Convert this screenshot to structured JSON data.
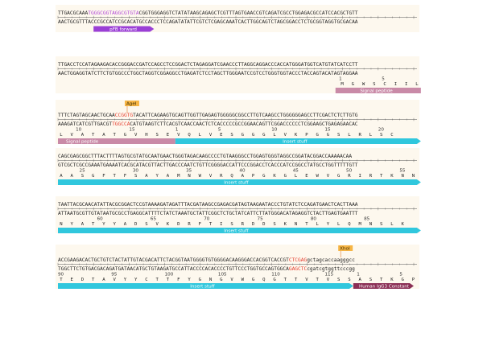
{
  "colors": {
    "background": "#ffffff",
    "band": "#fdf8ee",
    "purple_feature": "#9a3fd6",
    "signal_peptide": "#c98aa7",
    "insert": "#30c7dd",
    "igg_constant": "#8b2f55",
    "enzyme_label_bg": "#f6b545",
    "site_red": "#e53b2c",
    "site_purple": "#b046d6"
  },
  "blocks": [
    {
      "top_segments": [
        {
          "text": "TTGACGCAAA",
          "style": "normal"
        },
        {
          "text": "TGGGCGGTAGGCGTGTA",
          "style": "purple"
        },
        {
          "text": "CGGTGGGAGGTCTATATAAGCAGAGCTCGTTTAGTGAACCGTCAGATCGCCTGGAGACGCCATCCACGCTGTT",
          "style": "normal"
        }
      ],
      "bottom_segments": [
        {
          "text": "AACTGCGTTTACCCGCCATCCGCACATGCCACCCTCCAGATATATTCGTCTCGAGCAAATCACTTGGCAGTCTAGCGGACCTCTGCGGTAGGTGCGACAA",
          "style": "normal"
        }
      ],
      "numbers": [],
      "aa": [],
      "features": [
        {
          "label": "pFB forward",
          "start": 10,
          "end": 27,
          "color_key": "purple_feature",
          "direction": "right",
          "show_label": true
        }
      ],
      "enzymes": []
    },
    {
      "top_segments": [
        {
          "text": "TTGACCTCCATAGAAGACACCGGGACCGATCCAGCCTCCGGACTCTAGAGGATCGAACCCTTAGGCAGGACCCACCATGGGATGGTCATGTATCATCCTT",
          "style": "normal"
        }
      ],
      "bottom_segments": [
        {
          "text": "AACTGGAGGTATCTTCTGTGGCCCTGGCTAGGTCGGAGGCCTGAGATCTCCTAGCTTGGGAATCCGTCCTGGGTGGTACCCTACCAGTACATAGTAGGAA",
          "style": "normal"
        }
      ],
      "numbers": [
        {
          "n": "1",
          "pos": 79
        },
        {
          "n": "5",
          "pos": 91
        }
      ],
      "aa": [
        {
          "a": "M",
          "pos": 79
        },
        {
          "a": "G",
          "pos": 82
        },
        {
          "a": "W",
          "pos": 85
        },
        {
          "a": "S",
          "pos": 88
        },
        {
          "a": "C",
          "pos": 91
        },
        {
          "a": "I",
          "pos": 94
        },
        {
          "a": "I",
          "pos": 97
        },
        {
          "a": "L",
          "pos": 100
        }
      ],
      "features": [
        {
          "label": "Signal peptide",
          "start": 78,
          "end": 102,
          "color_key": "signal_peptide",
          "direction": "none",
          "show_label": true
        }
      ],
      "enzymes": []
    },
    {
      "top_segments": [
        {
          "text": "TTTCTAGTAGCAACTGCAA",
          "style": "normal"
        },
        {
          "text": "CCGGTG",
          "style": "red"
        },
        {
          "text": "TACATTCAGAAGTGCAGTTGGTTGAGAGTGGGGGCGGCCTTGTCAAGCCTGGGGGGAGCCTTCGACTCTCTTGTG",
          "style": "normal"
        }
      ],
      "bottom_segments": [
        {
          "text": "AAAGATCATCGTTGACGT",
          "style": "normal"
        },
        {
          "text": "TGGCCA",
          "style": "red"
        },
        {
          "text": "CATGTAAGTCTTCACGTCAACCAACTCTCACCCCCGCCGGAACAGTTCGGACCCCCCTCGGAAGCTGAGAGAACAC",
          "style": "normal"
        }
      ],
      "numbers": [
        {
          "n": "10",
          "pos": 5
        },
        {
          "n": "15",
          "pos": 20
        },
        {
          "n": "1",
          "pos": 33
        },
        {
          "n": "5",
          "pos": 45
        },
        {
          "n": "10",
          "pos": 60
        },
        {
          "n": "15",
          "pos": 75
        },
        {
          "n": "20",
          "pos": 90
        }
      ],
      "aa": [
        {
          "a": "L",
          "pos": 0
        },
        {
          "a": "V",
          "pos": 3
        },
        {
          "a": "A",
          "pos": 6
        },
        {
          "a": "T",
          "pos": 9
        },
        {
          "a": "A",
          "pos": 12
        },
        {
          "a": "T",
          "pos": 15
        },
        {
          "a": "G",
          "pos": 18
        },
        {
          "a": "V",
          "pos": 21
        },
        {
          "a": "H",
          "pos": 24
        },
        {
          "a": "S",
          "pos": 27
        },
        {
          "a": "E",
          "pos": 30
        },
        {
          "a": "V",
          "pos": 33
        },
        {
          "a": "Q",
          "pos": 36
        },
        {
          "a": "L",
          "pos": 39
        },
        {
          "a": "V",
          "pos": 42
        },
        {
          "a": "E",
          "pos": 45
        },
        {
          "a": "S",
          "pos": 48
        },
        {
          "a": "G",
          "pos": 51
        },
        {
          "a": "G",
          "pos": 54
        },
        {
          "a": "G",
          "pos": 57
        },
        {
          "a": "L",
          "pos": 60
        },
        {
          "a": "V",
          "pos": 63
        },
        {
          "a": "K",
          "pos": 66
        },
        {
          "a": "P",
          "pos": 69
        },
        {
          "a": "G",
          "pos": 72
        },
        {
          "a": "G",
          "pos": 75
        },
        {
          "a": "S",
          "pos": 78
        },
        {
          "a": "L",
          "pos": 81
        },
        {
          "a": "R",
          "pos": 84
        },
        {
          "a": "L",
          "pos": 87
        },
        {
          "a": "S",
          "pos": 90
        },
        {
          "a": "C",
          "pos": 93
        }
      ],
      "features": [
        {
          "label": "Signal peptide",
          "start": 0,
          "end": 33,
          "color_key": "signal_peptide",
          "direction": "none",
          "show_label": true
        },
        {
          "label": "Insert stuff",
          "start": 33,
          "end": 102,
          "color_key": "insert",
          "direction": "right",
          "show_label": true
        }
      ],
      "enzymes": [
        {
          "label": "AgeI",
          "pos": 19
        }
      ]
    },
    {
      "top_segments": [
        {
          "text": "CAGCGAGCGGCTTTACTTTTAGTGCGTATGCAATGAACTGGGTAGACAAGCCCCTGTAAGGGCCTGGAGTGGGTAGGCCGGATACGGACCAAAAACAA",
          "style": "normal"
        }
      ],
      "bottom_segments": [
        {
          "text": "GTCGCTCGCCGAAATGAAAATCACGCATACGTTACTTGACCCAATCTGTTCGGGGACCATTCCCGGACCTCACCCATCCGGCCTATGCCTGGTTTTTGTT",
          "style": "normal"
        }
      ],
      "numbers": [
        {
          "n": "25",
          "pos": 6
        },
        {
          "n": "30",
          "pos": 21
        },
        {
          "n": "35",
          "pos": 36
        },
        {
          "n": "40",
          "pos": 51
        },
        {
          "n": "45",
          "pos": 66
        },
        {
          "n": "50",
          "pos": 81
        },
        {
          "n": "55",
          "pos": 96
        }
      ],
      "aa": [
        {
          "a": "A",
          "pos": 0
        },
        {
          "a": "A",
          "pos": 3
        },
        {
          "a": "S",
          "pos": 6
        },
        {
          "a": "G",
          "pos": 9
        },
        {
          "a": "F",
          "pos": 12
        },
        {
          "a": "T",
          "pos": 15
        },
        {
          "a": "F",
          "pos": 18
        },
        {
          "a": "S",
          "pos": 21
        },
        {
          "a": "A",
          "pos": 24
        },
        {
          "a": "Y",
          "pos": 27
        },
        {
          "a": "A",
          "pos": 30
        },
        {
          "a": "M",
          "pos": 33
        },
        {
          "a": "N",
          "pos": 36
        },
        {
          "a": "W",
          "pos": 39
        },
        {
          "a": "V",
          "pos": 42
        },
        {
          "a": "R",
          "pos": 45
        },
        {
          "a": "Q",
          "pos": 48
        },
        {
          "a": "A",
          "pos": 51
        },
        {
          "a": "P",
          "pos": 54
        },
        {
          "a": "G",
          "pos": 57
        },
        {
          "a": "K",
          "pos": 60
        },
        {
          "a": "G",
          "pos": 63
        },
        {
          "a": "L",
          "pos": 66
        },
        {
          "a": "E",
          "pos": 69
        },
        {
          "a": "W",
          "pos": 72
        },
        {
          "a": "V",
          "pos": 75
        },
        {
          "a": "G",
          "pos": 78
        },
        {
          "a": "R",
          "pos": 81
        },
        {
          "a": "I",
          "pos": 84
        },
        {
          "a": "R",
          "pos": 87
        },
        {
          "a": "T",
          "pos": 90
        },
        {
          "a": "K",
          "pos": 93
        },
        {
          "a": "N",
          "pos": 96
        },
        {
          "a": "N",
          "pos": 99
        }
      ],
      "features": [
        {
          "label": "Insert stuff",
          "start": 0,
          "end": 102,
          "color_key": "insert",
          "direction": "right",
          "show_label": true
        }
      ],
      "enzymes": []
    },
    {
      "top_segments": [
        {
          "text": "TAATTACGCAACATATTACGCGGACTCCGTAAAAGATAGATTTACGATAAGCCGAGACGATAGTAAGAATACCCTGTATCTCCAGATGAACTCACTTAAA",
          "style": "normal"
        }
      ],
      "bottom_segments": [
        {
          "text": "ATTAATGCGTTGTATAATGCGCCTGAGGCATTTTCTATCTAAATGCTATTCGGCTCTGCTATCATTCTTATGGGACATAGAGGTCTACTTGAGTGAATTT",
          "style": "normal"
        }
      ],
      "numbers": [
        {
          "n": "60",
          "pos": 11
        },
        {
          "n": "65",
          "pos": 26
        },
        {
          "n": "70",
          "pos": 41
        },
        {
          "n": "75",
          "pos": 56
        },
        {
          "n": "80",
          "pos": 71
        },
        {
          "n": "85",
          "pos": 86
        }
      ],
      "aa": [
        {
          "a": "N",
          "pos": 0
        },
        {
          "a": "Y",
          "pos": 3
        },
        {
          "a": "A",
          "pos": 6
        },
        {
          "a": "T",
          "pos": 9
        },
        {
          "a": "Y",
          "pos": 12
        },
        {
          "a": "Y",
          "pos": 15
        },
        {
          "a": "A",
          "pos": 18
        },
        {
          "a": "D",
          "pos": 21
        },
        {
          "a": "S",
          "pos": 24
        },
        {
          "a": "V",
          "pos": 27
        },
        {
          "a": "K",
          "pos": 30
        },
        {
          "a": "D",
          "pos": 33
        },
        {
          "a": "R",
          "pos": 36
        },
        {
          "a": "F",
          "pos": 39
        },
        {
          "a": "T",
          "pos": 42
        },
        {
          "a": "I",
          "pos": 45
        },
        {
          "a": "S",
          "pos": 48
        },
        {
          "a": "R",
          "pos": 51
        },
        {
          "a": "D",
          "pos": 54
        },
        {
          "a": "D",
          "pos": 57
        },
        {
          "a": "S",
          "pos": 60
        },
        {
          "a": "K",
          "pos": 63
        },
        {
          "a": "N",
          "pos": 66
        },
        {
          "a": "T",
          "pos": 69
        },
        {
          "a": "L",
          "pos": 72
        },
        {
          "a": "Y",
          "pos": 75
        },
        {
          "a": "L",
          "pos": 78
        },
        {
          "a": "Q",
          "pos": 81
        },
        {
          "a": "M",
          "pos": 84
        },
        {
          "a": "N",
          "pos": 87
        },
        {
          "a": "S",
          "pos": 90
        },
        {
          "a": "L",
          "pos": 93
        },
        {
          "a": "K",
          "pos": 96
        }
      ],
      "features": [
        {
          "label": "Insert stuff",
          "start": 0,
          "end": 102,
          "color_key": "insert",
          "direction": "right",
          "show_label": true
        }
      ],
      "enzymes": []
    },
    {
      "top_segments": [
        {
          "text": "ACCGAAGACACTGCTGTCTACTATTGTACGACATTCTACGGTAATGGGGTGTGGGGACAAGGGACCACGGTCACCGT",
          "style": "normal"
        },
        {
          "text": "CTCGAG",
          "style": "red"
        },
        {
          "text": "gctagcaccaagggcc",
          "style": "normal"
        }
      ],
      "bottom_segments": [
        {
          "text": "TGGCTTCTGTGACGACAGATGATAACATGCTGTAAGATGCCATTACCCCACACCCCTGTTCCCTGGTGCCAGTGGCA",
          "style": "normal"
        },
        {
          "text": "GAGCTC",
          "style": "red"
        },
        {
          "text": "cgatcgtggttcccgg",
          "style": "normal"
        }
      ],
      "numbers": [
        {
          "n": "90",
          "pos": 0
        },
        {
          "n": "95",
          "pos": 15
        },
        {
          "n": "100",
          "pos": 30
        },
        {
          "n": "105",
          "pos": 45
        },
        {
          "n": "110",
          "pos": 60
        },
        {
          "n": "115",
          "pos": 75
        },
        {
          "n": "1",
          "pos": 84
        },
        {
          "n": "5",
          "pos": 96
        }
      ],
      "aa": [
        {
          "a": "T",
          "pos": 0
        },
        {
          "a": "E",
          "pos": 3
        },
        {
          "a": "D",
          "pos": 6
        },
        {
          "a": "T",
          "pos": 9
        },
        {
          "a": "A",
          "pos": 12
        },
        {
          "a": "V",
          "pos": 15
        },
        {
          "a": "Y",
          "pos": 18
        },
        {
          "a": "Y",
          "pos": 21
        },
        {
          "a": "C",
          "pos": 24
        },
        {
          "a": "T",
          "pos": 27
        },
        {
          "a": "T",
          "pos": 30
        },
        {
          "a": "F",
          "pos": 33
        },
        {
          "a": "Y",
          "pos": 36
        },
        {
          "a": "G",
          "pos": 39
        },
        {
          "a": "N",
          "pos": 42
        },
        {
          "a": "G",
          "pos": 45
        },
        {
          "a": "V",
          "pos": 48
        },
        {
          "a": "W",
          "pos": 51
        },
        {
          "a": "G",
          "pos": 54
        },
        {
          "a": "Q",
          "pos": 57
        },
        {
          "a": "G",
          "pos": 60
        },
        {
          "a": "T",
          "pos": 63
        },
        {
          "a": "T",
          "pos": 66
        },
        {
          "a": "V",
          "pos": 69
        },
        {
          "a": "T",
          "pos": 72
        },
        {
          "a": "V",
          "pos": 75
        },
        {
          "a": "S",
          "pos": 78
        },
        {
          "a": "S",
          "pos": 81
        },
        {
          "a": "A",
          "pos": 84
        },
        {
          "a": "S",
          "pos": 87
        },
        {
          "a": "T",
          "pos": 90
        },
        {
          "a": "K",
          "pos": 93
        },
        {
          "a": "G",
          "pos": 96
        },
        {
          "a": "P",
          "pos": 99
        }
      ],
      "features": [
        {
          "label": "Insert stuff",
          "start": 0,
          "end": 83,
          "color_key": "insert",
          "direction": "right",
          "show_label": true
        },
        {
          "label": "Human IgG3 Constant",
          "start": 83,
          "end": 100,
          "color_key": "igg_constant",
          "direction": "right",
          "show_label": true
        }
      ],
      "enzymes": [
        {
          "label": "XhoI",
          "pos": 79
        }
      ]
    }
  ]
}
